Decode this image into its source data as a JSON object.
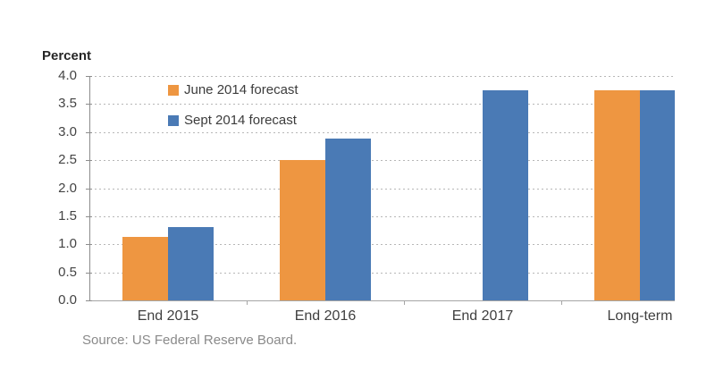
{
  "chart_data": {
    "type": "bar",
    "title": "Percent",
    "ylabel": "Percent",
    "xlabel": "",
    "categories": [
      "End 2015",
      "End 2016",
      "End 2017",
      "Long-term"
    ],
    "series": [
      {
        "name": "June 2014 forecast",
        "color": "#EE9641",
        "values": [
          1.13,
          2.5,
          null,
          3.75
        ]
      },
      {
        "name": "Sept 2014 forecast",
        "color": "#4A7AB5",
        "values": [
          1.3,
          2.88,
          3.75,
          3.75
        ]
      }
    ],
    "ylim": [
      0,
      4
    ],
    "ytick_step": 0.5,
    "yticks": [
      "4.0",
      "3.5",
      "3.0",
      "2.5",
      "2.0",
      "1.5",
      "1.0",
      "0.5",
      "0.0"
    ],
    "grid": "horizontal dashed, behind bars",
    "legend_position": "inside plot, top-left",
    "source": "Source: US Federal Reserve Board."
  }
}
